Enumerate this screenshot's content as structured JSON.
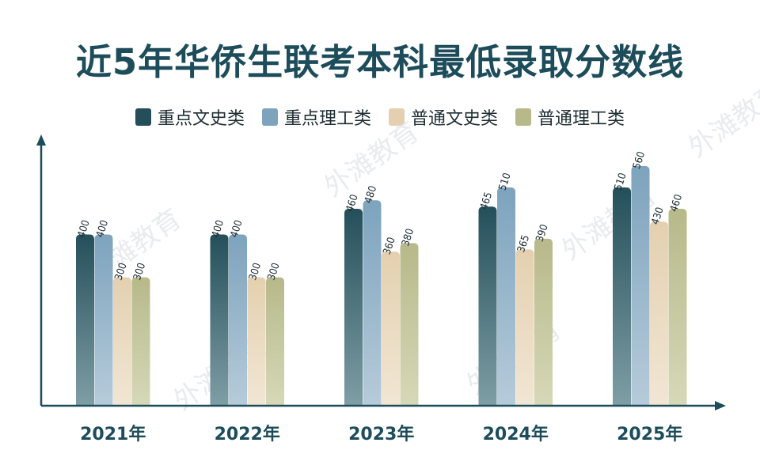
{
  "title": "近5年华侨生联考本科最低录取分数线",
  "chart_data": {
    "type": "bar",
    "categories": [
      "2021年",
      "2022年",
      "2023年",
      "2024年",
      "2025年"
    ],
    "series": [
      {
        "name": "重点文史类",
        "values": [
          400,
          400,
          460,
          465,
          510
        ],
        "color": "#244f5a",
        "color_light": "#7f9ea5"
      },
      {
        "name": "重点理工类",
        "values": [
          400,
          400,
          480,
          510,
          560
        ],
        "color": "#7da3bd",
        "color_light": "#b6cbda"
      },
      {
        "name": "普通文史类",
        "values": [
          300,
          300,
          360,
          365,
          430
        ],
        "color": "#e4d0b0",
        "color_light": "#f1e6d4"
      },
      {
        "name": "普通理工类",
        "values": [
          300,
          300,
          380,
          390,
          460
        ],
        "color": "#b7b98a",
        "color_light": "#d6d8b8"
      }
    ],
    "ylim": [
      0,
      630
    ],
    "axis_color": "#1d4c5a",
    "grid": false,
    "legend_position": "top"
  },
  "watermark": "外滩教育"
}
